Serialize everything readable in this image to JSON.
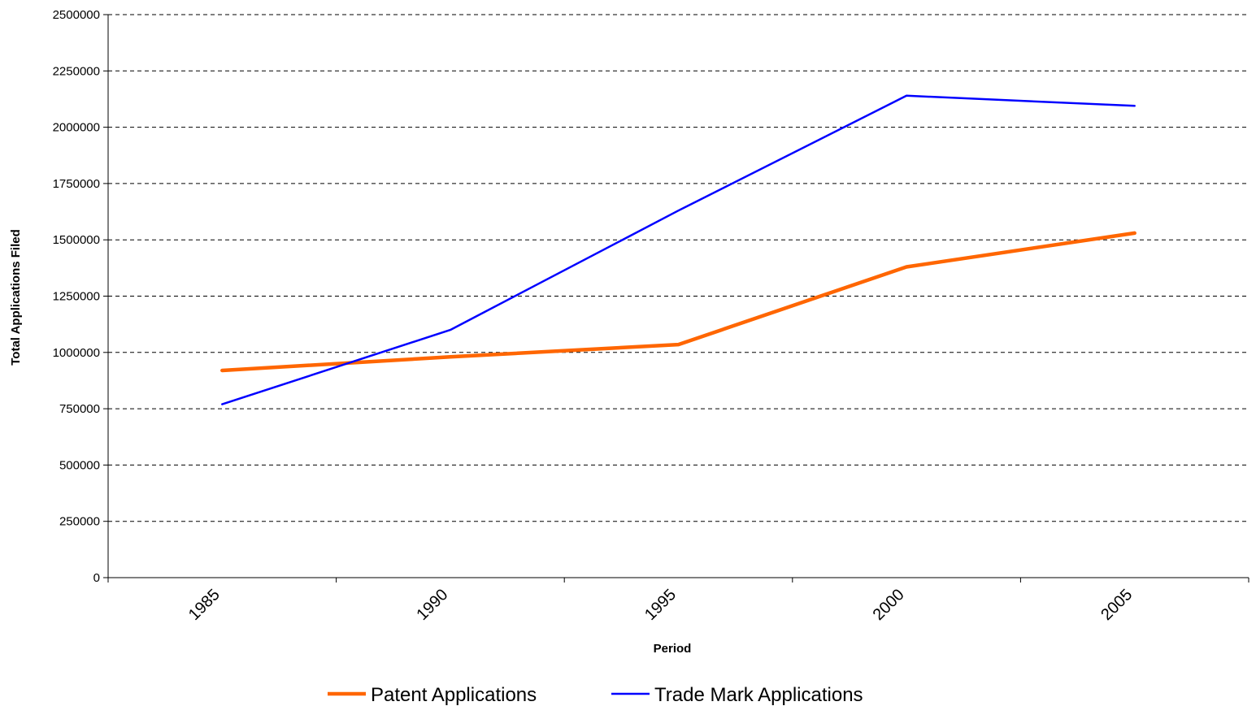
{
  "chart_data": {
    "type": "line",
    "title": "",
    "xlabel": "Period",
    "ylabel": "Total Applications Filed",
    "categories": [
      "1985",
      "1990",
      "1995",
      "2000",
      "2005"
    ],
    "ylim": [
      0,
      2500000
    ],
    "yticks": [
      "0",
      "250000",
      "500000",
      "750000",
      "1000000",
      "1250000",
      "1500000",
      "1750000",
      "2000000",
      "2250000",
      "2500000"
    ],
    "grid": true,
    "legend_position": "bottom",
    "series": [
      {
        "name": "Patent Applications",
        "color": "#FF6600",
        "values": [
          920000,
          980000,
          1035000,
          1380000,
          1530000
        ]
      },
      {
        "name": "Trade Mark Applications",
        "color": "#0000FF",
        "values": [
          770000,
          1100000,
          1630000,
          2140000,
          2095000
        ]
      }
    ]
  }
}
